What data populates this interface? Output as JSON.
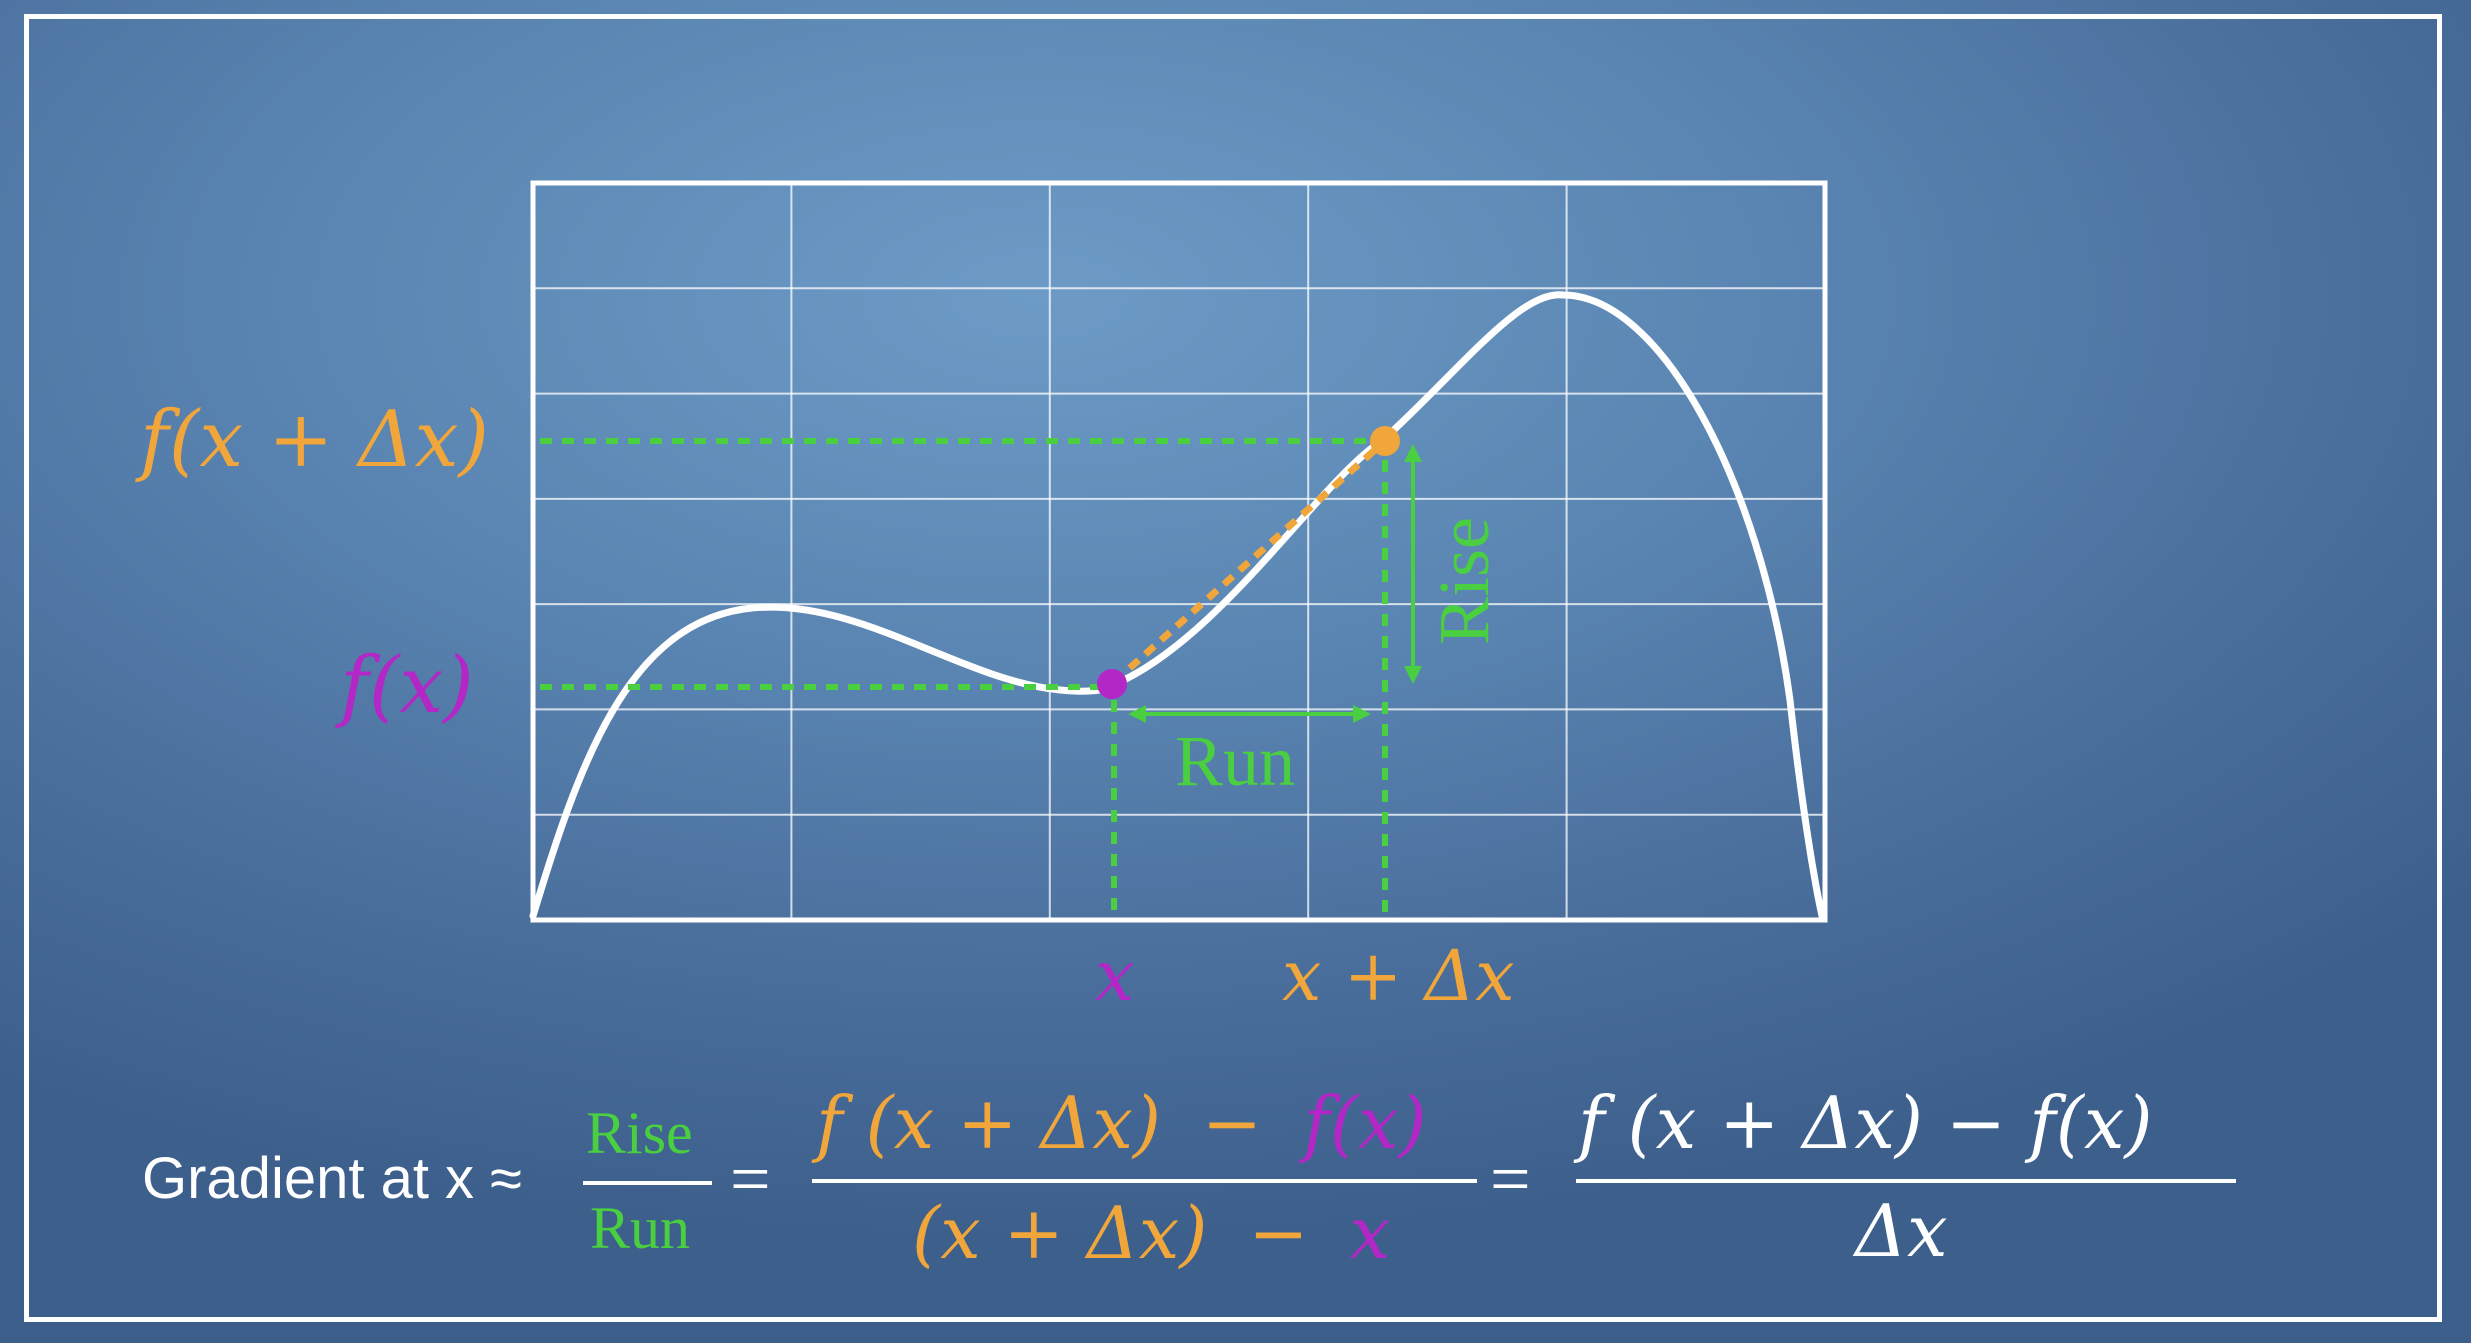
{
  "colors": {
    "background": "#5a85b2",
    "curve": "#ffffff",
    "grid": "#ffffff",
    "run_rise": "#49cf3f",
    "orange": "#f0a63a",
    "purple": "#b227c6",
    "text": "#ffffff"
  },
  "plot": {
    "grid_cols": 5,
    "grid_rows": 7
  },
  "labels": {
    "fx": "f(x)",
    "fxdx": "f(x + Δx)",
    "x": "x",
    "xdx": "x + Δx",
    "run": "Run",
    "rise": "Rise"
  },
  "formula": {
    "prefix": "Gradient at x ≈",
    "rise": "Rise",
    "run": "Run",
    "eq1": "=",
    "num_a": "f (x + Δx)",
    "minus": "−",
    "num_b": "f(x)",
    "den_a": "(x + Δx)",
    "den_b": "x",
    "eq2": "=",
    "num3": "f (x + Δx) − f(x)",
    "den3": "Δx"
  }
}
